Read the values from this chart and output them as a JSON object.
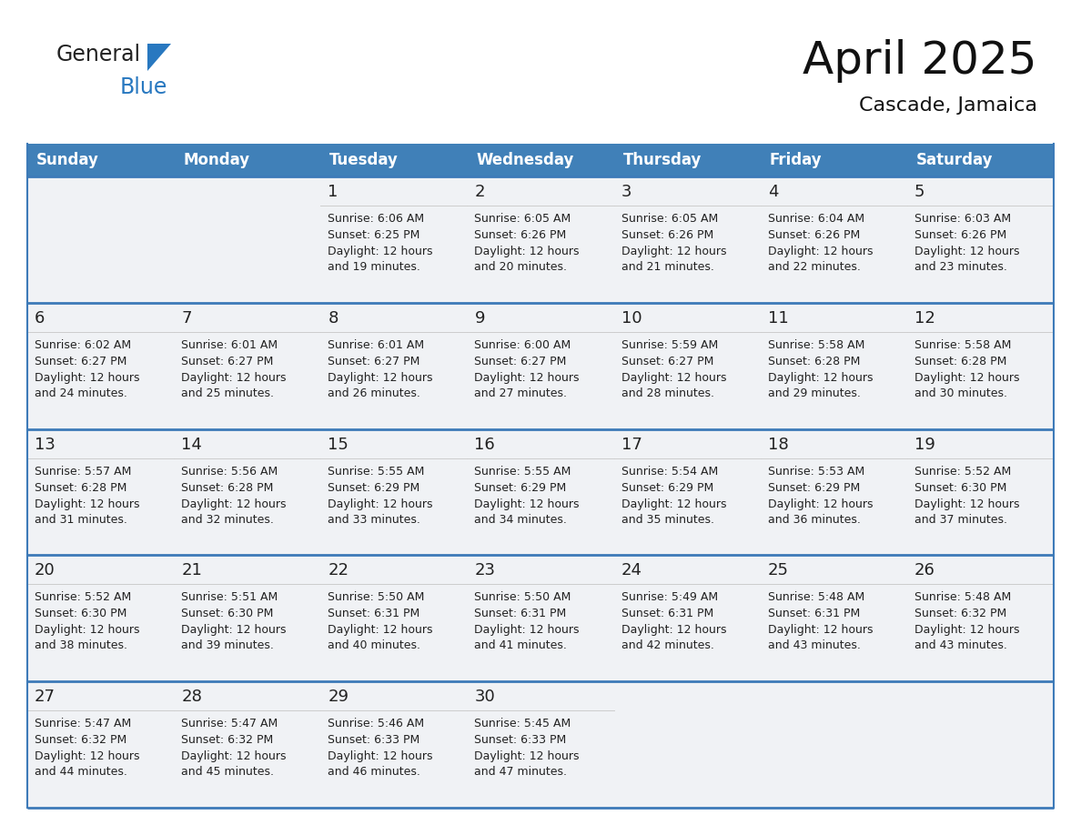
{
  "title": "April 2025",
  "subtitle": "Cascade, Jamaica",
  "days_of_week": [
    "Sunday",
    "Monday",
    "Tuesday",
    "Wednesday",
    "Thursday",
    "Friday",
    "Saturday"
  ],
  "header_bg": "#4080b8",
  "header_text": "#ffffff",
  "cell_bg": "#f0f2f5",
  "border_color": "#3d7ab8",
  "text_color": "#222222",
  "day_separator_color": "#cccccc",
  "calendar_data": [
    [
      {
        "day": "",
        "sunrise": "",
        "sunset": "",
        "daylight": ""
      },
      {
        "day": "",
        "sunrise": "",
        "sunset": "",
        "daylight": ""
      },
      {
        "day": "1",
        "sunrise": "Sunrise: 6:06 AM",
        "sunset": "Sunset: 6:25 PM",
        "daylight": "Daylight: 12 hours\nand 19 minutes."
      },
      {
        "day": "2",
        "sunrise": "Sunrise: 6:05 AM",
        "sunset": "Sunset: 6:26 PM",
        "daylight": "Daylight: 12 hours\nand 20 minutes."
      },
      {
        "day": "3",
        "sunrise": "Sunrise: 6:05 AM",
        "sunset": "Sunset: 6:26 PM",
        "daylight": "Daylight: 12 hours\nand 21 minutes."
      },
      {
        "day": "4",
        "sunrise": "Sunrise: 6:04 AM",
        "sunset": "Sunset: 6:26 PM",
        "daylight": "Daylight: 12 hours\nand 22 minutes."
      },
      {
        "day": "5",
        "sunrise": "Sunrise: 6:03 AM",
        "sunset": "Sunset: 6:26 PM",
        "daylight": "Daylight: 12 hours\nand 23 minutes."
      }
    ],
    [
      {
        "day": "6",
        "sunrise": "Sunrise: 6:02 AM",
        "sunset": "Sunset: 6:27 PM",
        "daylight": "Daylight: 12 hours\nand 24 minutes."
      },
      {
        "day": "7",
        "sunrise": "Sunrise: 6:01 AM",
        "sunset": "Sunset: 6:27 PM",
        "daylight": "Daylight: 12 hours\nand 25 minutes."
      },
      {
        "day": "8",
        "sunrise": "Sunrise: 6:01 AM",
        "sunset": "Sunset: 6:27 PM",
        "daylight": "Daylight: 12 hours\nand 26 minutes."
      },
      {
        "day": "9",
        "sunrise": "Sunrise: 6:00 AM",
        "sunset": "Sunset: 6:27 PM",
        "daylight": "Daylight: 12 hours\nand 27 minutes."
      },
      {
        "day": "10",
        "sunrise": "Sunrise: 5:59 AM",
        "sunset": "Sunset: 6:27 PM",
        "daylight": "Daylight: 12 hours\nand 28 minutes."
      },
      {
        "day": "11",
        "sunrise": "Sunrise: 5:58 AM",
        "sunset": "Sunset: 6:28 PM",
        "daylight": "Daylight: 12 hours\nand 29 minutes."
      },
      {
        "day": "12",
        "sunrise": "Sunrise: 5:58 AM",
        "sunset": "Sunset: 6:28 PM",
        "daylight": "Daylight: 12 hours\nand 30 minutes."
      }
    ],
    [
      {
        "day": "13",
        "sunrise": "Sunrise: 5:57 AM",
        "sunset": "Sunset: 6:28 PM",
        "daylight": "Daylight: 12 hours\nand 31 minutes."
      },
      {
        "day": "14",
        "sunrise": "Sunrise: 5:56 AM",
        "sunset": "Sunset: 6:28 PM",
        "daylight": "Daylight: 12 hours\nand 32 minutes."
      },
      {
        "day": "15",
        "sunrise": "Sunrise: 5:55 AM",
        "sunset": "Sunset: 6:29 PM",
        "daylight": "Daylight: 12 hours\nand 33 minutes."
      },
      {
        "day": "16",
        "sunrise": "Sunrise: 5:55 AM",
        "sunset": "Sunset: 6:29 PM",
        "daylight": "Daylight: 12 hours\nand 34 minutes."
      },
      {
        "day": "17",
        "sunrise": "Sunrise: 5:54 AM",
        "sunset": "Sunset: 6:29 PM",
        "daylight": "Daylight: 12 hours\nand 35 minutes."
      },
      {
        "day": "18",
        "sunrise": "Sunrise: 5:53 AM",
        "sunset": "Sunset: 6:29 PM",
        "daylight": "Daylight: 12 hours\nand 36 minutes."
      },
      {
        "day": "19",
        "sunrise": "Sunrise: 5:52 AM",
        "sunset": "Sunset: 6:30 PM",
        "daylight": "Daylight: 12 hours\nand 37 minutes."
      }
    ],
    [
      {
        "day": "20",
        "sunrise": "Sunrise: 5:52 AM",
        "sunset": "Sunset: 6:30 PM",
        "daylight": "Daylight: 12 hours\nand 38 minutes."
      },
      {
        "day": "21",
        "sunrise": "Sunrise: 5:51 AM",
        "sunset": "Sunset: 6:30 PM",
        "daylight": "Daylight: 12 hours\nand 39 minutes."
      },
      {
        "day": "22",
        "sunrise": "Sunrise: 5:50 AM",
        "sunset": "Sunset: 6:31 PM",
        "daylight": "Daylight: 12 hours\nand 40 minutes."
      },
      {
        "day": "23",
        "sunrise": "Sunrise: 5:50 AM",
        "sunset": "Sunset: 6:31 PM",
        "daylight": "Daylight: 12 hours\nand 41 minutes."
      },
      {
        "day": "24",
        "sunrise": "Sunrise: 5:49 AM",
        "sunset": "Sunset: 6:31 PM",
        "daylight": "Daylight: 12 hours\nand 42 minutes."
      },
      {
        "day": "25",
        "sunrise": "Sunrise: 5:48 AM",
        "sunset": "Sunset: 6:31 PM",
        "daylight": "Daylight: 12 hours\nand 43 minutes."
      },
      {
        "day": "26",
        "sunrise": "Sunrise: 5:48 AM",
        "sunset": "Sunset: 6:32 PM",
        "daylight": "Daylight: 12 hours\nand 43 minutes."
      }
    ],
    [
      {
        "day": "27",
        "sunrise": "Sunrise: 5:47 AM",
        "sunset": "Sunset: 6:32 PM",
        "daylight": "Daylight: 12 hours\nand 44 minutes."
      },
      {
        "day": "28",
        "sunrise": "Sunrise: 5:47 AM",
        "sunset": "Sunset: 6:32 PM",
        "daylight": "Daylight: 12 hours\nand 45 minutes."
      },
      {
        "day": "29",
        "sunrise": "Sunrise: 5:46 AM",
        "sunset": "Sunset: 6:33 PM",
        "daylight": "Daylight: 12 hours\nand 46 minutes."
      },
      {
        "day": "30",
        "sunrise": "Sunrise: 5:45 AM",
        "sunset": "Sunset: 6:33 PM",
        "daylight": "Daylight: 12 hours\nand 47 minutes."
      },
      {
        "day": "",
        "sunrise": "",
        "sunset": "",
        "daylight": ""
      },
      {
        "day": "",
        "sunrise": "",
        "sunset": "",
        "daylight": ""
      },
      {
        "day": "",
        "sunrise": "",
        "sunset": "",
        "daylight": ""
      }
    ]
  ],
  "logo_color_general": "#222222",
  "logo_color_blue": "#2878c0",
  "title_fontsize": 36,
  "subtitle_fontsize": 16,
  "header_fontsize": 12,
  "day_num_fontsize": 13,
  "cell_fontsize": 9
}
